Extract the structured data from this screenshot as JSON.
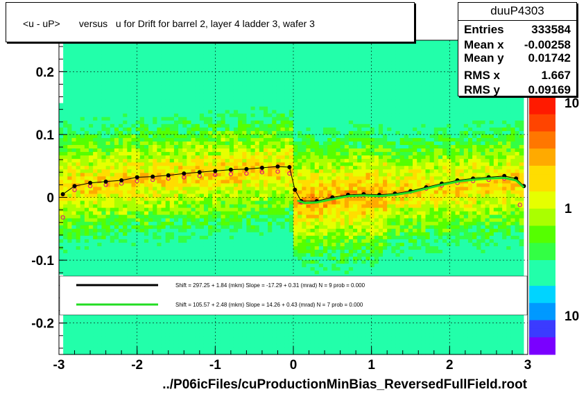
{
  "title": "<u - uP>       versus   u for Drift for barrel 2, layer 4 ladder 3, wafer 3",
  "stats": {
    "name": "duuP4303",
    "rows": [
      {
        "label": "Entries",
        "value": "333584"
      },
      {
        "label": "Mean x",
        "value": "-0.00258"
      },
      {
        "label": "Mean y",
        "value": "0.01742"
      },
      {
        "label": "RMS x",
        "value": "1.667"
      },
      {
        "label": "RMS y",
        "value": "0.09169"
      }
    ]
  },
  "footer": "../P06icFiles/cuProductionMinBias_ReversedFullField.root",
  "legend": [
    {
      "color": "#000000",
      "text": "Shift =    297.25 + 1.84 (mkm) Slope =    -17.29 + 0.31 (mrad)  N = 9 prob = 0.000"
    },
    {
      "color": "#22dd22",
      "text": "Shift =    105.57 + 2.48 (mkm) Slope =     14.26 + 0.43 (mrad)  N = 7 prob = 0.000"
    }
  ],
  "colors": {
    "black_series": "#000000",
    "green_series": "#22dd22",
    "magenta_series": "#e0008a"
  },
  "chart_data": {
    "type": "heatmap",
    "title": "<u - uP>       versus   u for Drift for barrel 2, layer 4 ladder 3, wafer 3",
    "xlabel": "",
    "ylabel": "",
    "xlim": [
      -3,
      3
    ],
    "ylim": [
      -0.25,
      0.25
    ],
    "x_ticks": [
      -3,
      -2,
      -1,
      0,
      1,
      2,
      3
    ],
    "y_ticks": [
      -0.2,
      -0.1,
      0,
      0.1,
      0.2
    ],
    "y_tick_labels": [
      "-0.2",
      "-0.1",
      "0",
      "0.1",
      "0.2"
    ],
    "colorbar_labels": [
      "10",
      "1",
      "10"
    ],
    "grid": true,
    "series": [
      {
        "name": "black profile",
        "color": "#000000",
        "x": [
          -2.95,
          -2.8,
          -2.6,
          -2.4,
          -2.2,
          -2.0,
          -1.8,
          -1.6,
          -1.4,
          -1.2,
          -1.0,
          -0.8,
          -0.6,
          -0.4,
          -0.2,
          -0.05,
          0.02,
          0.1,
          0.3,
          0.5,
          0.7,
          0.9,
          1.1,
          1.3,
          1.5,
          1.7,
          1.9,
          2.1,
          2.3,
          2.5,
          2.7,
          2.85,
          2.95
        ],
        "y": [
          0.005,
          0.018,
          0.023,
          0.025,
          0.027,
          0.032,
          0.033,
          0.035,
          0.038,
          0.04,
          0.042,
          0.044,
          0.045,
          0.047,
          0.049,
          0.048,
          0.012,
          -0.006,
          -0.006,
          0.0,
          0.004,
          0.005,
          0.004,
          0.006,
          0.01,
          0.016,
          0.022,
          0.027,
          0.03,
          0.032,
          0.034,
          0.03,
          0.018
        ]
      },
      {
        "name": "green fit",
        "color": "#22dd22",
        "x": [
          0.05,
          0.15,
          0.3,
          0.5,
          0.7,
          0.9,
          1.1,
          1.3,
          1.5,
          1.7,
          1.9,
          2.1,
          2.3,
          2.5,
          2.7,
          2.85,
          2.95
        ],
        "y": [
          -0.005,
          -0.009,
          -0.008,
          -0.003,
          0.002,
          0.003,
          0.002,
          0.004,
          0.008,
          0.014,
          0.02,
          0.025,
          0.028,
          0.03,
          0.031,
          0.027,
          0.016
        ]
      },
      {
        "name": "magenta profile",
        "color": "#e0008a",
        "x": [
          -2.95,
          -2.8,
          -2.6,
          -2.4,
          -2.2,
          -2.0,
          -1.8,
          -1.6,
          -1.4,
          -1.2,
          -1.0,
          -0.8,
          -0.6,
          -0.4,
          -0.2,
          -0.05,
          0.1,
          0.3,
          0.5,
          0.7,
          0.9,
          1.1,
          1.3,
          1.5,
          1.7,
          1.9,
          2.1,
          2.3,
          2.5,
          2.7,
          2.9
        ],
        "y": [
          -0.032,
          0.012,
          0.018,
          0.02,
          0.022,
          0.026,
          0.028,
          0.03,
          0.032,
          0.034,
          0.036,
          0.037,
          0.038,
          0.04,
          0.041,
          0.038,
          -0.008,
          -0.006,
          -0.001,
          0.003,
          0.004,
          0.003,
          0.005,
          0.009,
          0.014,
          0.019,
          0.023,
          0.026,
          0.028,
          0.03,
          -0.012
        ]
      }
    ]
  }
}
